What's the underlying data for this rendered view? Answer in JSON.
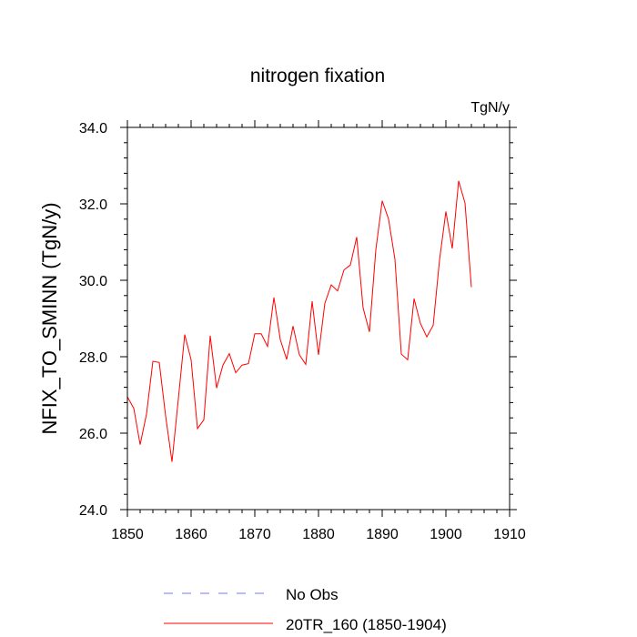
{
  "chart_data": {
    "type": "line",
    "title": "nitrogen fixation",
    "units": "TgN/y",
    "ylabel": "NFIX_TO_SMINN  (TgN/y)",
    "xlabel": "",
    "xlim": [
      1850,
      1910
    ],
    "ylim": [
      24.0,
      34.0
    ],
    "xticks": [
      1850,
      1860,
      1870,
      1880,
      1890,
      1900,
      1910
    ],
    "xtick_labels": [
      "1850",
      "1860",
      "1870",
      "1880",
      "1890",
      "1900",
      "1910"
    ],
    "yticks": [
      24.0,
      26.0,
      28.0,
      30.0,
      32.0,
      34.0
    ],
    "ytick_labels": [
      "24.0",
      "26.0",
      "28.0",
      "30.0",
      "32.0",
      "34.0"
    ],
    "legend": [
      {
        "label": "No Obs",
        "color": "#7777ff",
        "dash": true
      },
      {
        "label": "20TR_160 (1850-1904)",
        "color": "#ff0000",
        "dash": false
      }
    ],
    "series": [
      {
        "name": "20TR_160 (1850-1904)",
        "color": "#ff0000",
        "x": [
          1850,
          1851,
          1852,
          1853,
          1854,
          1855,
          1856,
          1857,
          1858,
          1859,
          1860,
          1861,
          1862,
          1863,
          1864,
          1865,
          1866,
          1867,
          1868,
          1869,
          1870,
          1871,
          1872,
          1873,
          1874,
          1875,
          1876,
          1877,
          1878,
          1879,
          1880,
          1881,
          1882,
          1883,
          1884,
          1885,
          1886,
          1887,
          1888,
          1889,
          1890,
          1891,
          1892,
          1893,
          1894,
          1895,
          1896,
          1897,
          1898,
          1899,
          1900,
          1901,
          1902,
          1903,
          1904
        ],
        "values": [
          26.95,
          26.65,
          25.7,
          26.5,
          27.88,
          27.85,
          26.45,
          25.25,
          26.9,
          28.58,
          27.92,
          26.12,
          26.35,
          28.55,
          27.18,
          27.78,
          28.08,
          27.58,
          27.78,
          27.82,
          28.6,
          28.6,
          28.27,
          29.55,
          28.45,
          27.93,
          28.8,
          28.05,
          27.8,
          29.45,
          28.05,
          29.4,
          29.88,
          29.72,
          30.27,
          30.4,
          31.13,
          29.28,
          28.65,
          30.8,
          32.08,
          31.6,
          30.55,
          28.07,
          27.92,
          29.52,
          28.87,
          28.52,
          28.82,
          30.53,
          31.8,
          30.83,
          32.6,
          32.02,
          29.82
        ]
      }
    ]
  }
}
